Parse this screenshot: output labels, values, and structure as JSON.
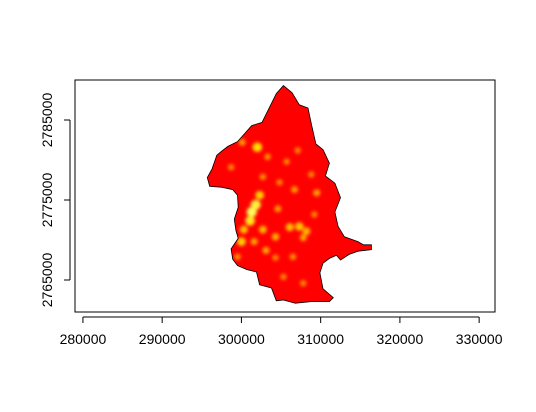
{
  "chart_data": {
    "type": "heatmap",
    "title": "",
    "xlabel": "",
    "ylabel": "",
    "xlim": [
      279000,
      332000
    ],
    "ylim": [
      2761000,
      2790000
    ],
    "x_ticks": [
      280000,
      290000,
      300000,
      310000,
      320000,
      330000
    ],
    "x_tick_labels": [
      "280000",
      "290000",
      "300000",
      "310000",
      "320000",
      "330000"
    ],
    "y_ticks": [
      2765000,
      2775000,
      2785000
    ],
    "y_tick_labels": [
      "2765000",
      "2775000",
      "2785000"
    ],
    "grid": false,
    "legend": "none",
    "colors": {
      "low": "#ff0000",
      "mid": "#ff8c00",
      "high": "#ffff00",
      "border": "#000000"
    },
    "region_outline": [
      [
        305300,
        2789300
      ],
      [
        306400,
        2788400
      ],
      [
        307300,
        2786900
      ],
      [
        308400,
        2786500
      ],
      [
        308900,
        2784200
      ],
      [
        309400,
        2782000
      ],
      [
        310300,
        2781300
      ],
      [
        311100,
        2779600
      ],
      [
        310600,
        2778000
      ],
      [
        311800,
        2777100
      ],
      [
        312500,
        2775300
      ],
      [
        311800,
        2773500
      ],
      [
        312200,
        2771700
      ],
      [
        313000,
        2770400
      ],
      [
        314700,
        2769800
      ],
      [
        315400,
        2769400
      ],
      [
        316400,
        2769400
      ],
      [
        316400,
        2768800
      ],
      [
        314700,
        2768600
      ],
      [
        313600,
        2768200
      ],
      [
        312500,
        2767500
      ],
      [
        312000,
        2768100
      ],
      [
        311100,
        2767700
      ],
      [
        310300,
        2767100
      ],
      [
        309900,
        2765900
      ],
      [
        310300,
        2763900
      ],
      [
        311600,
        2762800
      ],
      [
        311100,
        2762300
      ],
      [
        308800,
        2762300
      ],
      [
        306800,
        2762100
      ],
      [
        305300,
        2762500
      ],
      [
        304400,
        2762400
      ],
      [
        303800,
        2764000
      ],
      [
        302300,
        2764400
      ],
      [
        301900,
        2766000
      ],
      [
        300700,
        2766300
      ],
      [
        299500,
        2766800
      ],
      [
        298900,
        2767600
      ],
      [
        298700,
        2768900
      ],
      [
        299600,
        2770200
      ],
      [
        299300,
        2771200
      ],
      [
        299100,
        2772600
      ],
      [
        299600,
        2774100
      ],
      [
        299500,
        2775600
      ],
      [
        298900,
        2776300
      ],
      [
        297500,
        2776600
      ],
      [
        296000,
        2776700
      ],
      [
        295700,
        2777800
      ],
      [
        296300,
        2778900
      ],
      [
        296900,
        2780600
      ],
      [
        297500,
        2781100
      ],
      [
        298300,
        2781700
      ],
      [
        299500,
        2782300
      ],
      [
        300400,
        2783300
      ],
      [
        301300,
        2784300
      ],
      [
        302600,
        2784700
      ],
      [
        303400,
        2786300
      ],
      [
        304400,
        2788300
      ]
    ],
    "hotspots": [
      {
        "x": 301300,
        "y": 2773500,
        "intensity": 0.95
      },
      {
        "x": 301800,
        "y": 2774400,
        "intensity": 0.9
      },
      {
        "x": 301100,
        "y": 2772400,
        "intensity": 0.85
      },
      {
        "x": 302300,
        "y": 2775600,
        "intensity": 0.7
      },
      {
        "x": 302000,
        "y": 2781600,
        "intensity": 0.8
      },
      {
        "x": 300300,
        "y": 2771300,
        "intensity": 0.6
      },
      {
        "x": 300000,
        "y": 2769800,
        "intensity": 0.7
      },
      {
        "x": 302700,
        "y": 2771300,
        "intensity": 0.55
      },
      {
        "x": 306100,
        "y": 2771600,
        "intensity": 0.6
      },
      {
        "x": 307300,
        "y": 2771700,
        "intensity": 0.65
      },
      {
        "x": 308200,
        "y": 2771100,
        "intensity": 0.55
      },
      {
        "x": 307800,
        "y": 2770300,
        "intensity": 0.45
      },
      {
        "x": 304300,
        "y": 2770400,
        "intensity": 0.5
      },
      {
        "x": 303100,
        "y": 2768700,
        "intensity": 0.45
      },
      {
        "x": 301600,
        "y": 2769800,
        "intensity": 0.45
      },
      {
        "x": 309500,
        "y": 2775900,
        "intensity": 0.45
      },
      {
        "x": 306700,
        "y": 2776300,
        "intensity": 0.4
      },
      {
        "x": 304600,
        "y": 2773900,
        "intensity": 0.4
      },
      {
        "x": 300100,
        "y": 2782200,
        "intensity": 0.4
      },
      {
        "x": 303300,
        "y": 2780400,
        "intensity": 0.35
      },
      {
        "x": 305700,
        "y": 2779800,
        "intensity": 0.3
      },
      {
        "x": 307100,
        "y": 2781200,
        "intensity": 0.3
      },
      {
        "x": 306500,
        "y": 2767900,
        "intensity": 0.35
      },
      {
        "x": 305300,
        "y": 2765400,
        "intensity": 0.3
      },
      {
        "x": 307800,
        "y": 2764600,
        "intensity": 0.3
      },
      {
        "x": 304800,
        "y": 2777200,
        "intensity": 0.3
      },
      {
        "x": 298700,
        "y": 2779100,
        "intensity": 0.3
      },
      {
        "x": 308800,
        "y": 2778200,
        "intensity": 0.3
      },
      {
        "x": 302700,
        "y": 2777900,
        "intensity": 0.35
      },
      {
        "x": 299500,
        "y": 2767900,
        "intensity": 0.35
      },
      {
        "x": 304300,
        "y": 2767800,
        "intensity": 0.3
      },
      {
        "x": 309200,
        "y": 2773200,
        "intensity": 0.3
      }
    ]
  }
}
